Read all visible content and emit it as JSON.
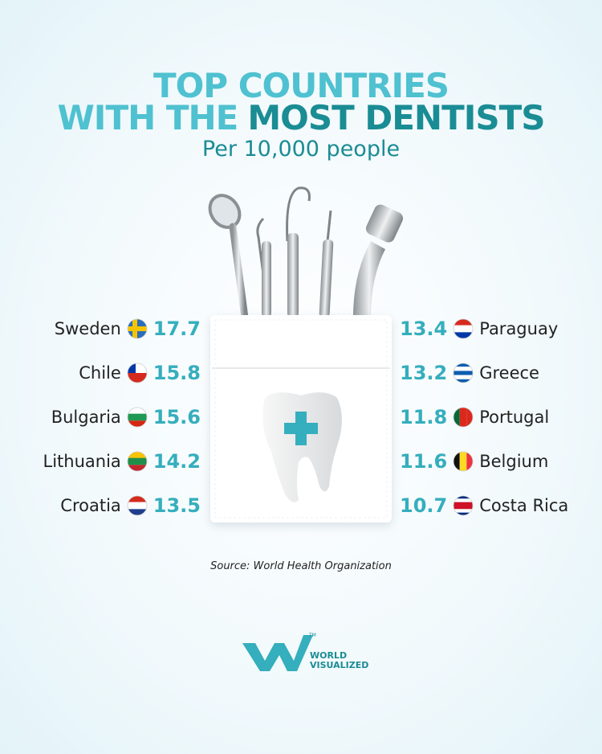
{
  "title": {
    "line1": "TOP COUNTRIES",
    "line2_start": "WITH THE",
    "line2_highlight": "MOST DENTISTS"
  },
  "subtitle": "Per 10,000 people",
  "left": [
    {
      "country": "Sweden",
      "value": 17.7
    },
    {
      "country": "Chile",
      "value": 15.8
    },
    {
      "country": "Bulgaria",
      "value": 15.6
    },
    {
      "country": "Lithuania",
      "value": 14.2
    },
    {
      "country": "Croatia",
      "value": 13.5
    }
  ],
  "right": [
    {
      "country": "Paraguay",
      "value": 13.4
    },
    {
      "country": "Greece",
      "value": 13.2
    },
    {
      "country": "Portugal",
      "value": 11.8
    },
    {
      "country": "Belgium",
      "value": 11.6
    },
    {
      "country": "Costa Rica",
      "value": 10.7
    }
  ],
  "source": "Source: World Health Organization",
  "logo": {
    "line1": "WORLD",
    "line2": "VISUALIZED",
    "mark": "TM"
  }
}
